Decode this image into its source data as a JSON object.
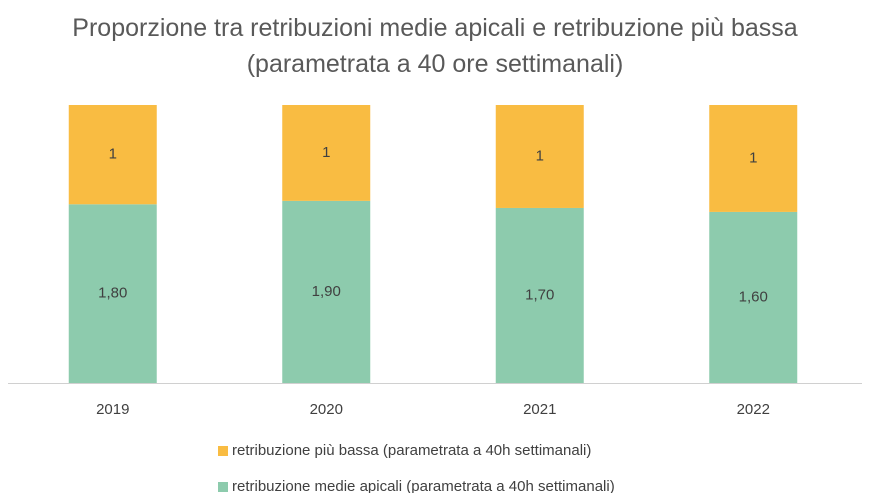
{
  "chart_data": {
    "type": "bar",
    "normalized": true,
    "title": "Proporzione tra retribuzioni medie apicali e retribuzione più bassa (parametrata a 40 ore settimanali)",
    "categories": [
      "2019",
      "2020",
      "2021",
      "2022"
    ],
    "series": [
      {
        "name": "retribuzione medie apicali (parametrata a 40h settimanali)",
        "color": "#8dcbad",
        "values": [
          1.8,
          1.9,
          1.7,
          1.6
        ],
        "value_labels": [
          "1,80",
          "1,90",
          "1,70",
          "1,60"
        ]
      },
      {
        "name": "retribuzione più bassa (parametrata a 40h settimanali)",
        "color": "#f9bc42",
        "values": [
          1,
          1,
          1,
          1
        ]
      }
    ]
  }
}
